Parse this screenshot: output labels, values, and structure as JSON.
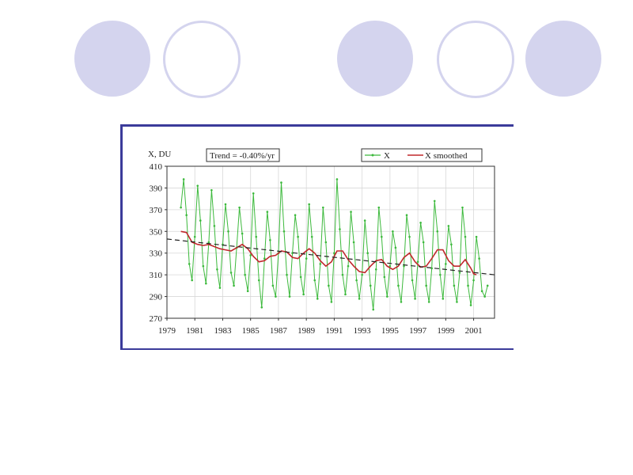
{
  "colors": {
    "decor_circle": "#d4d4ee",
    "frame": "#3b3b9a",
    "series_raw": "#3cb93c",
    "series_smoothed": "#c0282c",
    "trend": "#222222"
  },
  "chart_data": {
    "type": "line",
    "ylabel": "X, DU",
    "annotation": "Trend = -0.40%/yr",
    "legend_placement": "top-right",
    "xlim": [
      1979,
      2002.5
    ],
    "ylim": [
      270,
      410
    ],
    "x_ticks": [
      1979,
      1981,
      1983,
      1985,
      1987,
      1989,
      1991,
      1993,
      1995,
      1997,
      1999,
      2001
    ],
    "y_ticks": [
      270,
      290,
      310,
      330,
      350,
      370,
      390,
      410
    ],
    "grid": true,
    "series": [
      {
        "name": "X",
        "style": "line-with-markers",
        "x": [
          1980.0,
          1980.2,
          1980.4,
          1980.6,
          1980.8,
          1981.0,
          1981.2,
          1981.4,
          1981.6,
          1981.8,
          1982.0,
          1982.2,
          1982.4,
          1982.6,
          1982.8,
          1983.0,
          1983.2,
          1983.4,
          1983.6,
          1983.8,
          1984.0,
          1984.2,
          1984.4,
          1984.6,
          1984.8,
          1985.0,
          1985.2,
          1985.4,
          1985.6,
          1985.8,
          1986.0,
          1986.2,
          1986.4,
          1986.6,
          1986.8,
          1987.0,
          1987.2,
          1987.4,
          1987.6,
          1987.8,
          1988.0,
          1988.2,
          1988.4,
          1988.6,
          1988.8,
          1989.0,
          1989.2,
          1989.4,
          1989.6,
          1989.8,
          1990.0,
          1990.2,
          1990.4,
          1990.6,
          1990.8,
          1991.0,
          1991.2,
          1991.4,
          1991.6,
          1991.8,
          1992.0,
          1992.2,
          1992.4,
          1992.6,
          1992.8,
          1993.0,
          1993.2,
          1993.4,
          1993.6,
          1993.8,
          1994.0,
          1994.2,
          1994.4,
          1994.6,
          1994.8,
          1995.0,
          1995.2,
          1995.4,
          1995.6,
          1995.8,
          1996.0,
          1996.2,
          1996.4,
          1996.6,
          1996.8,
          1997.0,
          1997.2,
          1997.4,
          1997.6,
          1997.8,
          1998.0,
          1998.2,
          1998.4,
          1998.6,
          1998.8,
          1999.0,
          1999.2,
          1999.4,
          1999.6,
          1999.8,
          2000.0,
          2000.2,
          2000.4,
          2000.6,
          2000.8,
          2001.0,
          2001.2,
          2001.4,
          2001.6,
          2001.8,
          2002.0
        ],
        "y": [
          372,
          398,
          365,
          320,
          305,
          345,
          392,
          360,
          318,
          302,
          340,
          388,
          355,
          315,
          298,
          338,
          375,
          350,
          312,
          300,
          335,
          372,
          348,
          310,
          295,
          328,
          385,
          345,
          305,
          280,
          325,
          368,
          342,
          300,
          290,
          330,
          395,
          350,
          310,
          290,
          330,
          365,
          345,
          308,
          292,
          325,
          375,
          345,
          305,
          288,
          320,
          372,
          340,
          300,
          285,
          330,
          398,
          352,
          310,
          292,
          318,
          368,
          340,
          305,
          288,
          310,
          360,
          330,
          300,
          278,
          315,
          372,
          345,
          308,
          290,
          318,
          350,
          335,
          300,
          285,
          318,
          365,
          345,
          305,
          288,
          322,
          358,
          340,
          300,
          285,
          316,
          378,
          350,
          310,
          288,
          320,
          355,
          338,
          300,
          285,
          312,
          372,
          345,
          300,
          282,
          305,
          345,
          325,
          295,
          290,
          300
        ]
      },
      {
        "name": "X smoothed",
        "style": "line",
        "x": [
          1980.0,
          1980.4,
          1980.8,
          1981.2,
          1981.6,
          1982.0,
          1982.4,
          1982.8,
          1983.2,
          1983.6,
          1984.0,
          1984.4,
          1984.8,
          1985.2,
          1985.6,
          1986.0,
          1986.4,
          1986.8,
          1987.2,
          1987.6,
          1988.0,
          1988.4,
          1988.8,
          1989.2,
          1989.6,
          1990.0,
          1990.4,
          1990.8,
          1991.2,
          1991.6,
          1992.0,
          1992.4,
          1992.8,
          1993.2,
          1993.6,
          1994.0,
          1994.4,
          1994.8,
          1995.2,
          1995.6,
          1996.0,
          1996.4,
          1996.8,
          1997.2,
          1997.6,
          1998.0,
          1998.4,
          1998.8,
          1999.2,
          1999.6,
          2000.0,
          2000.4,
          2000.8,
          2001.0,
          2001.2
        ],
        "y": [
          350,
          349,
          340,
          338,
          337,
          338,
          336,
          334,
          333,
          332,
          335,
          338,
          334,
          327,
          322,
          323,
          327,
          328,
          332,
          331,
          326,
          325,
          330,
          334,
          330,
          323,
          318,
          322,
          332,
          332,
          324,
          318,
          313,
          312,
          318,
          323,
          324,
          318,
          315,
          318,
          326,
          330,
          322,
          317,
          318,
          325,
          333,
          333,
          323,
          318,
          318,
          324,
          316,
          311,
          310
        ]
      },
      {
        "name": "Trend",
        "style": "dashed",
        "x": [
          1979,
          2002.5
        ],
        "y": [
          343,
          310
        ]
      }
    ]
  }
}
